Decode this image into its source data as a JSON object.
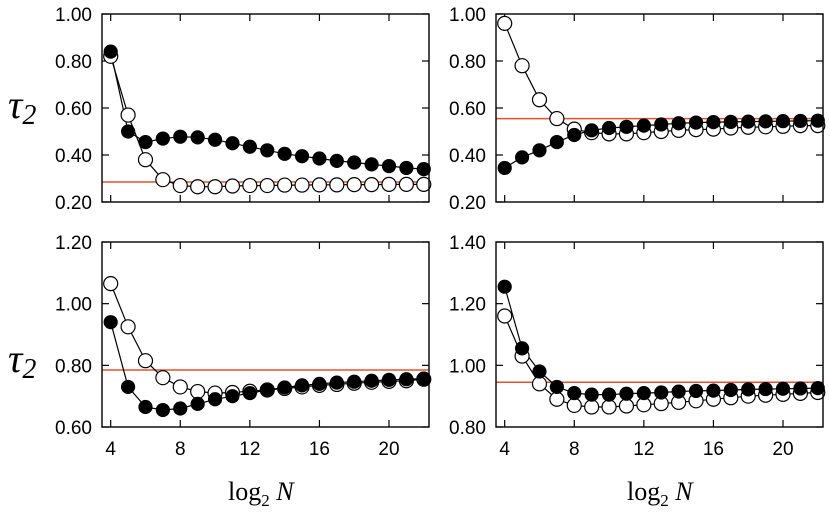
{
  "chart_data": [
    {
      "type": "line",
      "panel": "top-left",
      "xlabel": "",
      "ylabel": "τ2",
      "xlim": [
        3.5,
        22.3
      ],
      "ylim": [
        0.2,
        1.0
      ],
      "yticks": [
        "0.20",
        "0.40",
        "0.60",
        "0.80",
        "1.00"
      ],
      "xticks": [],
      "reference_line": 0.285,
      "series": [
        {
          "name": "open",
          "marker": "open-circle",
          "x": [
            4,
            5,
            6,
            7,
            8,
            9,
            10,
            11,
            12,
            13,
            14,
            15,
            16,
            17,
            18,
            19,
            20,
            21,
            22
          ],
          "y": [
            0.82,
            0.57,
            0.38,
            0.295,
            0.27,
            0.265,
            0.265,
            0.268,
            0.27,
            0.27,
            0.272,
            0.272,
            0.273,
            0.273,
            0.274,
            0.274,
            0.275,
            0.275,
            0.275
          ]
        },
        {
          "name": "filled",
          "marker": "filled-circle",
          "x": [
            4,
            5,
            6,
            7,
            8,
            9,
            10,
            11,
            12,
            13,
            14,
            15,
            16,
            17,
            18,
            19,
            20,
            21,
            22
          ],
          "y": [
            0.84,
            0.5,
            0.455,
            0.47,
            0.478,
            0.475,
            0.465,
            0.45,
            0.435,
            0.42,
            0.405,
            0.395,
            0.385,
            0.375,
            0.368,
            0.36,
            0.353,
            0.345,
            0.34
          ]
        }
      ]
    },
    {
      "type": "line",
      "panel": "top-right",
      "xlabel": "",
      "ylabel": "",
      "xlim": [
        3.5,
        22.3
      ],
      "ylim": [
        0.2,
        1.0
      ],
      "yticks": [
        "0.20",
        "0.40",
        "0.60",
        "0.80",
        "1.00"
      ],
      "xticks": [],
      "reference_line": 0.555,
      "series": [
        {
          "name": "open",
          "marker": "open-circle",
          "x": [
            4,
            5,
            6,
            7,
            8,
            9,
            10,
            11,
            12,
            13,
            14,
            15,
            16,
            17,
            18,
            19,
            20,
            21,
            22
          ],
          "y": [
            0.96,
            0.78,
            0.635,
            0.555,
            0.51,
            0.495,
            0.49,
            0.49,
            0.495,
            0.5,
            0.505,
            0.508,
            0.51,
            0.515,
            0.518,
            0.52,
            0.522,
            0.525,
            0.525
          ]
        },
        {
          "name": "filled",
          "marker": "filled-circle",
          "x": [
            4,
            5,
            6,
            7,
            8,
            9,
            10,
            11,
            12,
            13,
            14,
            15,
            16,
            17,
            18,
            19,
            20,
            21,
            22
          ],
          "y": [
            0.345,
            0.39,
            0.42,
            0.455,
            0.485,
            0.505,
            0.515,
            0.52,
            0.525,
            0.53,
            0.535,
            0.538,
            0.54,
            0.541,
            0.542,
            0.543,
            0.544,
            0.545,
            0.546
          ]
        }
      ]
    },
    {
      "type": "line",
      "panel": "bottom-left",
      "xlabel": "log2 N",
      "ylabel": "τ2",
      "xlim": [
        3.5,
        22.3
      ],
      "ylim": [
        0.6,
        1.2
      ],
      "yticks": [
        "0.60",
        "0.80",
        "1.00",
        "1.20"
      ],
      "xticks": [
        "4",
        "8",
        "12",
        "16",
        "20"
      ],
      "reference_line": 0.785,
      "series": [
        {
          "name": "open",
          "marker": "open-circle",
          "x": [
            4,
            5,
            6,
            7,
            8,
            9,
            10,
            11,
            12,
            13,
            14,
            15,
            16,
            17,
            18,
            19,
            20,
            21,
            22
          ],
          "y": [
            1.065,
            0.925,
            0.815,
            0.76,
            0.73,
            0.715,
            0.71,
            0.712,
            0.716,
            0.72,
            0.725,
            0.73,
            0.735,
            0.738,
            0.742,
            0.745,
            0.748,
            0.75,
            0.755
          ]
        },
        {
          "name": "filled",
          "marker": "filled-circle",
          "x": [
            4,
            5,
            6,
            7,
            8,
            9,
            10,
            11,
            12,
            13,
            14,
            15,
            16,
            17,
            18,
            19,
            20,
            21,
            22
          ],
          "y": [
            0.94,
            0.73,
            0.665,
            0.655,
            0.66,
            0.675,
            0.69,
            0.7,
            0.71,
            0.72,
            0.728,
            0.735,
            0.74,
            0.744,
            0.747,
            0.75,
            0.753,
            0.755,
            0.757
          ]
        }
      ]
    },
    {
      "type": "line",
      "panel": "bottom-right",
      "xlabel": "log2 N",
      "ylabel": "",
      "xlim": [
        3.5,
        22.3
      ],
      "ylim": [
        0.8,
        1.4
      ],
      "yticks": [
        "0.80",
        "1.00",
        "1.20",
        "1.40"
      ],
      "xticks": [
        "4",
        "8",
        "12",
        "16",
        "20"
      ],
      "reference_line": 0.945,
      "series": [
        {
          "name": "open",
          "marker": "open-circle",
          "x": [
            4,
            5,
            6,
            7,
            8,
            9,
            10,
            11,
            12,
            13,
            14,
            15,
            16,
            17,
            18,
            19,
            20,
            21,
            22
          ],
          "y": [
            1.16,
            1.03,
            0.94,
            0.89,
            0.87,
            0.865,
            0.865,
            0.868,
            0.872,
            0.876,
            0.88,
            0.885,
            0.89,
            0.895,
            0.9,
            0.903,
            0.906,
            0.909,
            0.912
          ]
        },
        {
          "name": "filled",
          "marker": "filled-circle",
          "x": [
            4,
            5,
            6,
            7,
            8,
            9,
            10,
            11,
            12,
            13,
            14,
            15,
            16,
            17,
            18,
            19,
            20,
            21,
            22
          ],
          "y": [
            1.255,
            1.055,
            0.98,
            0.93,
            0.91,
            0.905,
            0.905,
            0.908,
            0.91,
            0.912,
            0.915,
            0.917,
            0.918,
            0.92,
            0.922,
            0.923,
            0.924,
            0.925,
            0.926
          ]
        }
      ]
    }
  ],
  "colors": {
    "reference_line": "#e8502a",
    "marker": "#000000",
    "frame": "#000000"
  }
}
